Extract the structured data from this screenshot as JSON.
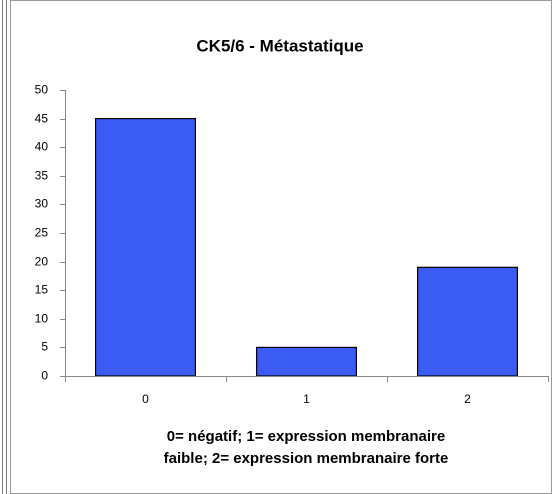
{
  "chart_data": {
    "type": "bar",
    "title": "CK5/6 - Métastatique",
    "categories": [
      "0",
      "1",
      "2"
    ],
    "values": [
      45,
      5,
      19
    ],
    "color": "#3a5cf5",
    "xlabel": [
      "0= négatif; 1= expression membranaire",
      "faible; 2= expression membranaire forte"
    ],
    "ylim": [
      0,
      50
    ],
    "yticks": [
      0,
      5,
      10,
      15,
      20,
      25,
      30,
      35,
      40,
      45,
      50
    ],
    "grid": false
  }
}
